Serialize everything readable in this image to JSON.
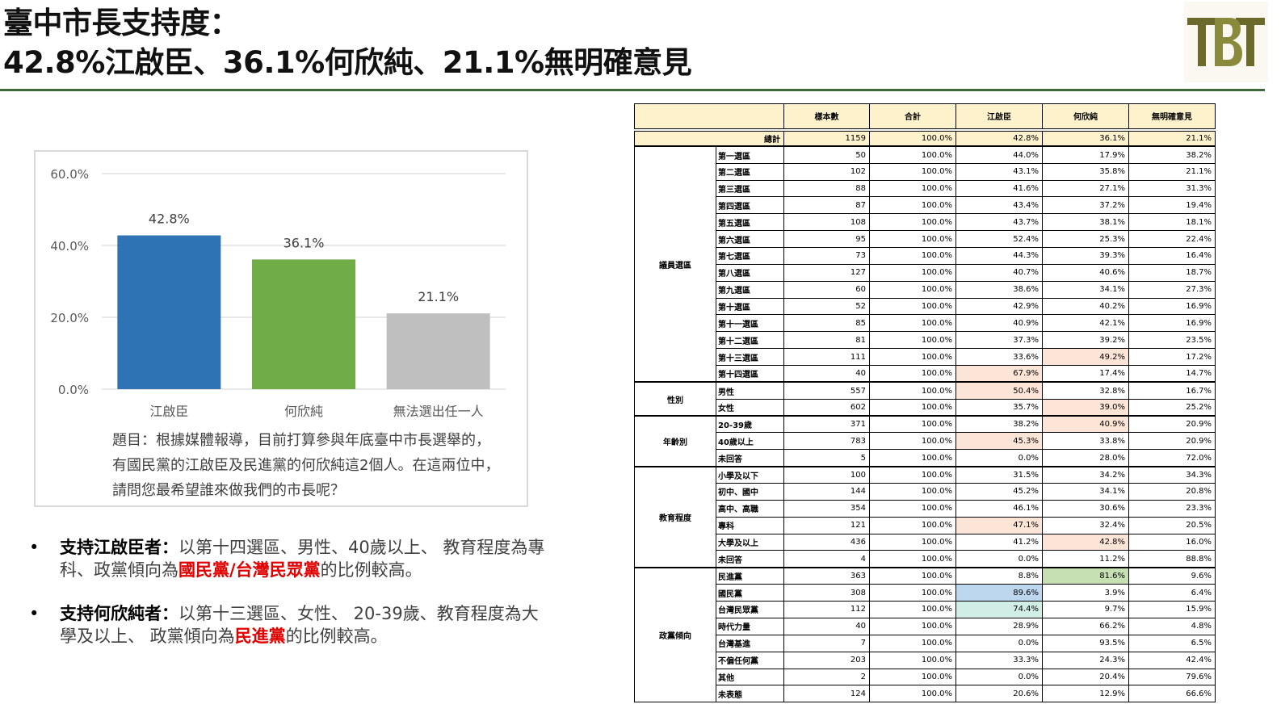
{
  "title": {
    "line1": "臺中市長支持度：",
    "line2": "42.8%江啟臣、36.1%何欣純、21.1%無明確意見"
  },
  "logo": {
    "text": "TBT"
  },
  "chart_data": {
    "type": "bar",
    "categories": [
      "江啟臣",
      "何欣純",
      "無法選出任一人"
    ],
    "values": [
      42.8,
      36.1,
      21.1
    ],
    "value_labels": [
      "42.8%",
      "36.1%",
      "21.1%"
    ],
    "colors": [
      "#2e74b5",
      "#70ad47",
      "#bfbfbf"
    ],
    "ylim": [
      0,
      60
    ],
    "yticks": [
      "0.0%",
      "20.0%",
      "40.0%",
      "60.0%"
    ],
    "ytick_values": [
      0,
      20,
      40,
      60
    ],
    "grid": true,
    "title": "",
    "xlabel": "",
    "ylabel": ""
  },
  "question": "題目：根據媒體報導，目前打算參與年底臺中市長選舉的，有國民黨的江啟臣及民進黨的何欣純這2個人。在這兩位中，請問您最希望誰來做我們的市長呢？",
  "bullets": [
    {
      "dot": "•",
      "head": "支持江啟臣者：",
      "text1": "以第十四選區、男性、40歲以上、 教育程度為專科、政黨傾向為",
      "red": "國民黨/台灣民眾黨",
      "text2": "的比例較高。"
    },
    {
      "dot": "•",
      "head": "支持何欣純者：",
      "text1": "以第十三選區、女性、 20-39歲、教育程度為大學及以上、 政黨傾向為",
      "red": "民進黨",
      "text2": "的比例較高。"
    }
  ],
  "table": {
    "headers": [
      "樣本數",
      "合計",
      "江啟臣",
      "何欣純",
      "無明確意見"
    ],
    "total": {
      "label": "總計",
      "values": [
        "1159",
        "100.0%",
        "42.8%",
        "36.1%",
        "21.1%"
      ]
    },
    "highlight_colors": {
      "orange": "#fce4d6",
      "green": "#c6e0b4",
      "blue": "#bdd7ee",
      "teal": "#d0ede6"
    },
    "groups": [
      {
        "name": "議員選區",
        "rows": [
          {
            "label": "第一選區",
            "values": [
              "50",
              "100.0%",
              "44.0%",
              "17.9%",
              "38.2%"
            ]
          },
          {
            "label": "第二選區",
            "values": [
              "102",
              "100.0%",
              "43.1%",
              "35.8%",
              "21.1%"
            ]
          },
          {
            "label": "第三選區",
            "values": [
              "88",
              "100.0%",
              "41.6%",
              "27.1%",
              "31.3%"
            ]
          },
          {
            "label": "第四選區",
            "values": [
              "87",
              "100.0%",
              "43.4%",
              "37.2%",
              "19.4%"
            ]
          },
          {
            "label": "第五選區",
            "values": [
              "108",
              "100.0%",
              "43.7%",
              "38.1%",
              "18.1%"
            ]
          },
          {
            "label": "第六選區",
            "values": [
              "95",
              "100.0%",
              "52.4%",
              "25.3%",
              "22.4%"
            ]
          },
          {
            "label": "第七選區",
            "values": [
              "73",
              "100.0%",
              "44.3%",
              "39.3%",
              "16.4%"
            ]
          },
          {
            "label": "第八選區",
            "values": [
              "127",
              "100.0%",
              "40.7%",
              "40.6%",
              "18.7%"
            ]
          },
          {
            "label": "第九選區",
            "values": [
              "60",
              "100.0%",
              "38.6%",
              "34.1%",
              "27.3%"
            ]
          },
          {
            "label": "第十選區",
            "values": [
              "52",
              "100.0%",
              "42.9%",
              "40.2%",
              "16.9%"
            ]
          },
          {
            "label": "第十一選區",
            "values": [
              "85",
              "100.0%",
              "40.9%",
              "42.1%",
              "16.9%"
            ]
          },
          {
            "label": "第十二選區",
            "values": [
              "81",
              "100.0%",
              "37.3%",
              "39.2%",
              "23.5%"
            ]
          },
          {
            "label": "第十三選區",
            "values": [
              "111",
              "100.0%",
              "33.6%",
              "49.2%",
              "17.2%"
            ],
            "hl": [
              null,
              null,
              null,
              "orange",
              null
            ]
          },
          {
            "label": "第十四選區",
            "values": [
              "40",
              "100.0%",
              "67.9%",
              "17.4%",
              "14.7%"
            ],
            "hl": [
              null,
              null,
              "orange",
              null,
              null
            ]
          }
        ]
      },
      {
        "name": "性別",
        "rows": [
          {
            "label": "男性",
            "values": [
              "557",
              "100.0%",
              "50.4%",
              "32.8%",
              "16.7%"
            ],
            "hl": [
              null,
              null,
              "orange",
              null,
              null
            ]
          },
          {
            "label": "女性",
            "values": [
              "602",
              "100.0%",
              "35.7%",
              "39.0%",
              "25.2%"
            ],
            "hl": [
              null,
              null,
              null,
              "orange",
              null
            ]
          }
        ]
      },
      {
        "name": "年齡別",
        "rows": [
          {
            "label": "20-39歲",
            "values": [
              "371",
              "100.0%",
              "38.2%",
              "40.9%",
              "20.9%"
            ],
            "hl": [
              null,
              null,
              null,
              "orange",
              null
            ]
          },
          {
            "label": "40歲以上",
            "values": [
              "783",
              "100.0%",
              "45.3%",
              "33.8%",
              "20.9%"
            ],
            "hl": [
              null,
              null,
              "orange",
              null,
              null
            ]
          },
          {
            "label": "未回答",
            "values": [
              "5",
              "100.0%",
              "0.0%",
              "28.0%",
              "72.0%"
            ]
          }
        ]
      },
      {
        "name": "教育程度",
        "rows": [
          {
            "label": "小學及以下",
            "values": [
              "100",
              "100.0%",
              "31.5%",
              "34.2%",
              "34.3%"
            ]
          },
          {
            "label": "初中、國中",
            "values": [
              "144",
              "100.0%",
              "45.2%",
              "34.1%",
              "20.8%"
            ]
          },
          {
            "label": "高中、高職",
            "values": [
              "354",
              "100.0%",
              "46.1%",
              "30.6%",
              "23.3%"
            ]
          },
          {
            "label": "專科",
            "values": [
              "121",
              "100.0%",
              "47.1%",
              "32.4%",
              "20.5%"
            ],
            "hl": [
              null,
              null,
              "orange",
              null,
              null
            ]
          },
          {
            "label": "大學及以上",
            "values": [
              "436",
              "100.0%",
              "41.2%",
              "42.8%",
              "16.0%"
            ],
            "hl": [
              null,
              null,
              null,
              "orange",
              null
            ]
          },
          {
            "label": "未回答",
            "values": [
              "4",
              "100.0%",
              "0.0%",
              "11.2%",
              "88.8%"
            ]
          }
        ]
      },
      {
        "name": "政黨傾向",
        "rows": [
          {
            "label": "民進黨",
            "values": [
              "363",
              "100.0%",
              "8.8%",
              "81.6%",
              "9.6%"
            ],
            "hl": [
              null,
              null,
              null,
              "green",
              null
            ]
          },
          {
            "label": "國民黨",
            "values": [
              "308",
              "100.0%",
              "89.6%",
              "3.9%",
              "6.4%"
            ],
            "hl": [
              null,
              null,
              "blue",
              null,
              null
            ]
          },
          {
            "label": "台灣民眾黨",
            "values": [
              "112",
              "100.0%",
              "74.4%",
              "9.7%",
              "15.9%"
            ],
            "hl": [
              null,
              null,
              "teal",
              null,
              null
            ]
          },
          {
            "label": "時代力量",
            "values": [
              "40",
              "100.0%",
              "28.9%",
              "66.2%",
              "4.8%"
            ]
          },
          {
            "label": "台灣基進",
            "values": [
              "7",
              "100.0%",
              "0.0%",
              "93.5%",
              "6.5%"
            ]
          },
          {
            "label": "不偏任何黨",
            "values": [
              "203",
              "100.0%",
              "33.3%",
              "24.3%",
              "42.4%"
            ]
          },
          {
            "label": "其他",
            "values": [
              "2",
              "100.0%",
              "0.0%",
              "20.4%",
              "79.6%"
            ]
          },
          {
            "label": "未表態",
            "values": [
              "124",
              "100.0%",
              "20.6%",
              "12.9%",
              "66.6%"
            ]
          }
        ]
      }
    ]
  }
}
